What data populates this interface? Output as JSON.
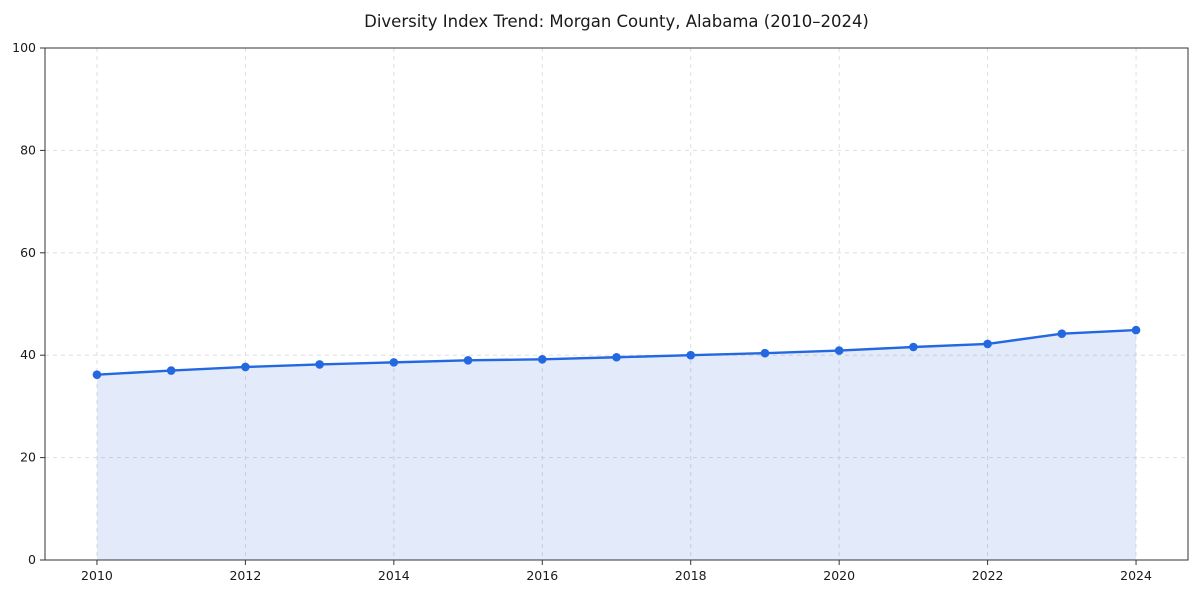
{
  "chart_data": {
    "type": "line",
    "title": "Diversity Index Trend: Morgan County, Alabama (2010–2024)",
    "series_name": "Diversity Index",
    "x": [
      2010,
      2011,
      2012,
      2013,
      2014,
      2015,
      2016,
      2017,
      2018,
      2019,
      2020,
      2021,
      2022,
      2023,
      2024
    ],
    "values": [
      36.2,
      37.0,
      37.7,
      38.2,
      38.6,
      39.0,
      39.2,
      39.6,
      40.0,
      40.4,
      40.9,
      41.6,
      42.2,
      44.2,
      44.9
    ],
    "xlabel": "",
    "ylabel": "",
    "ylim": [
      0,
      100
    ],
    "x_range": [
      2009.3,
      2024.7
    ],
    "yticks": [
      0,
      20,
      40,
      60,
      80,
      100
    ],
    "xticks": [
      2010,
      2012,
      2014,
      2016,
      2018,
      2020,
      2022,
      2024
    ],
    "grid": true,
    "grid_style": "dashed",
    "legend": "none",
    "area_fill": true,
    "marker": "circle",
    "colors": {
      "line": "#2368e0",
      "fill_opacity": "0.13",
      "grid": "#dedede",
      "axis": "#333333",
      "text": "#1a1a1a"
    }
  }
}
